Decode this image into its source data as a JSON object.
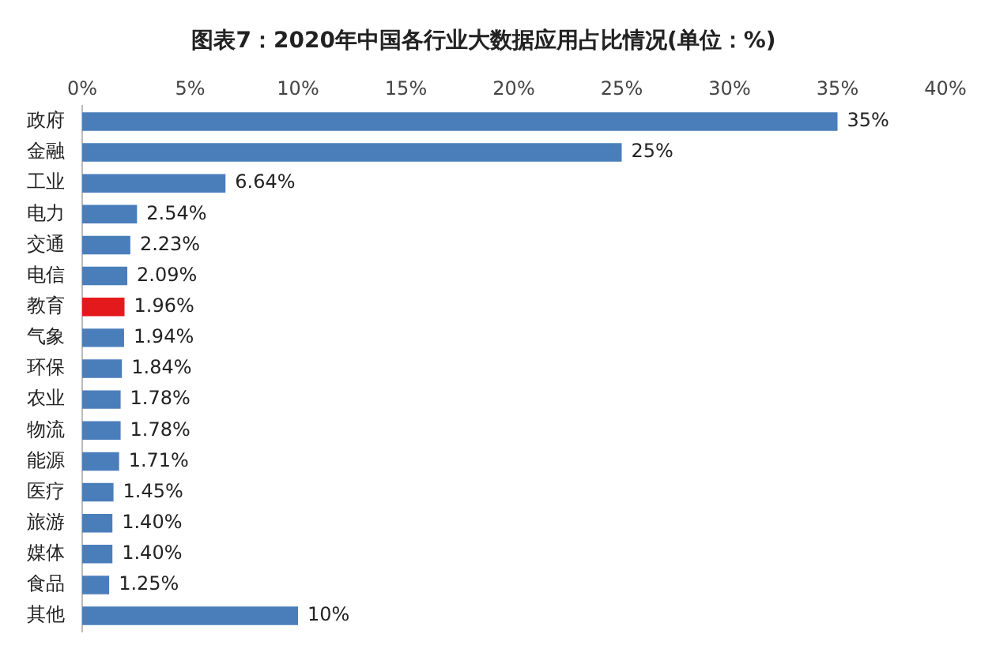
{
  "chart_data": {
    "type": "bar",
    "orientation": "horizontal",
    "title": "图表7：2020年中国各行业大数据应用占比情况(单位：%)",
    "categories": [
      "政府",
      "金融",
      "工业",
      "电力",
      "交通",
      "电信",
      "教育",
      "气象",
      "环保",
      "农业",
      "物流",
      "能源",
      "医疗",
      "旅游",
      "媒体",
      "食品",
      "其他"
    ],
    "values": [
      35,
      25,
      6.64,
      2.54,
      2.23,
      2.09,
      1.96,
      1.94,
      1.84,
      1.78,
      1.78,
      1.71,
      1.45,
      1.4,
      1.4,
      1.25,
      10
    ],
    "colors": [
      "#4a7ebb",
      "#4a7ebb",
      "#4a7ebb",
      "#4a7ebb",
      "#4a7ebb",
      "#4a7ebb",
      "#e3191c",
      "#4a7ebb",
      "#4a7ebb",
      "#4a7ebb",
      "#4a7ebb",
      "#4a7ebb",
      "#4a7ebb",
      "#4a7ebb",
      "#4a7ebb",
      "#4a7ebb",
      "#4a7ebb"
    ],
    "value_labels": [
      "35%",
      "25%",
      "6.64%",
      "2.54%",
      "2.23%",
      "2.09%",
      "1.96%",
      "1.94%",
      "1.84%",
      "1.78%",
      "1.78%",
      "1.71%",
      "1.45%",
      "1.40%",
      "1.40%",
      "1.25%",
      "10%"
    ],
    "xlim": [
      0,
      40
    ],
    "xticks": [
      {
        "value": 0,
        "label": "0%"
      },
      {
        "value": 5,
        "label": "5%"
      },
      {
        "value": 10,
        "label": "10%"
      },
      {
        "value": 15,
        "label": "15%"
      },
      {
        "value": 20,
        "label": "20%"
      },
      {
        "value": 25,
        "label": "25%"
      },
      {
        "value": 30,
        "label": "30%"
      },
      {
        "value": 35,
        "label": "35%"
      },
      {
        "value": 40,
        "label": "40%"
      }
    ],
    "grid": false,
    "legend": false
  }
}
